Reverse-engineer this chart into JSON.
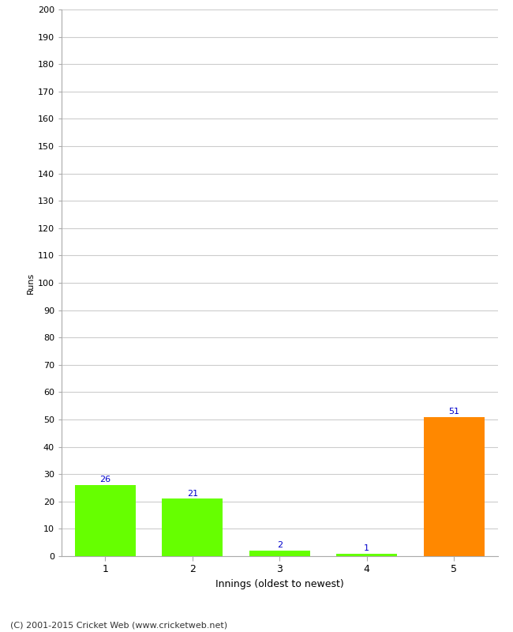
{
  "categories": [
    1,
    2,
    3,
    4,
    5
  ],
  "values": [
    26,
    21,
    2,
    1,
    51
  ],
  "bar_colors": [
    "#66ff00",
    "#66ff00",
    "#66ff00",
    "#66ff00",
    "#ff8800"
  ],
  "xlabel": "Innings (oldest to newest)",
  "ylabel": "Runs",
  "ylim": [
    0,
    200
  ],
  "yticks": [
    0,
    10,
    20,
    30,
    40,
    50,
    60,
    70,
    80,
    90,
    100,
    110,
    120,
    130,
    140,
    150,
    160,
    170,
    180,
    190,
    200
  ],
  "label_color": "#0000cc",
  "label_fontsize": 8,
  "footer": "(C) 2001-2015 Cricket Web (www.cricketweb.net)",
  "background_color": "#ffffff",
  "grid_color": "#cccccc",
  "bar_width": 0.7
}
